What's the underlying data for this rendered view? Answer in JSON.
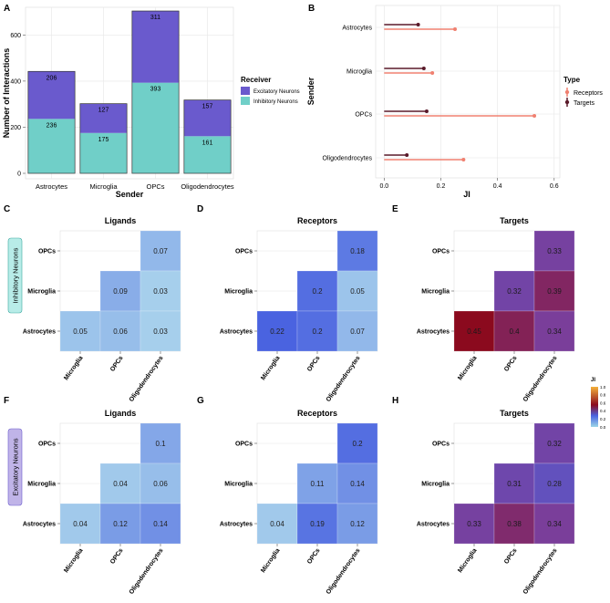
{
  "panel_letters": [
    "A",
    "B",
    "C",
    "D",
    "E",
    "F",
    "G",
    "H"
  ],
  "colors": {
    "excitatory": "#6a5acd",
    "inhibitory": "#70cfc8",
    "receptors": "#f08070",
    "targets": "#5a1a2a",
    "grid": "#e6e6e6",
    "inhibitory_tag_bg": "#b8ece8",
    "excitatory_tag_bg": "#c0b4e8"
  },
  "row_labels": {
    "inhibitory": "Inhibitory Neurons",
    "excitatory": "Excitatory Neurons"
  },
  "chart_data": [
    {
      "id": "A",
      "type": "bar",
      "stacked": true,
      "title": "",
      "xlabel": "Sender",
      "ylabel": "Number of Interactions",
      "categories": [
        "Astrocytes",
        "Microglia",
        "OPCs",
        "Oligodendrocytes"
      ],
      "series": [
        {
          "name": "Inhibitory Neurons",
          "values": [
            236,
            175,
            393,
            161
          ]
        },
        {
          "name": "Excitatory Neurons",
          "values": [
            206,
            127,
            311,
            157
          ]
        }
      ],
      "ylim": [
        0,
        720
      ],
      "yticks": [
        0,
        200,
        400,
        600
      ],
      "legend_title": "Receiver",
      "legend_entries": [
        "Excitatory Neurons",
        "Inhibitory Neurons"
      ]
    },
    {
      "id": "B",
      "type": "lollipop",
      "xlabel": "JI",
      "ylabel": "Sender",
      "categories": [
        "Astrocytes",
        "Microglia",
        "OPCs",
        "Oligodendrocytes"
      ],
      "series": [
        {
          "name": "Targets",
          "values": [
            0.12,
            0.14,
            0.15,
            0.08
          ]
        },
        {
          "name": "Receptors",
          "values": [
            0.25,
            0.17,
            0.53,
            0.28
          ]
        }
      ],
      "xlim": [
        -0.03,
        0.62
      ],
      "xticks": [
        "0.0",
        "0.2",
        "0.4",
        "0.6"
      ],
      "legend_title": "Type",
      "legend_entries": [
        "Receptors",
        "Targets"
      ]
    },
    {
      "id": "C",
      "type": "heatmap",
      "title": "Ligands",
      "x_labels": [
        "Microglia",
        "OPCs",
        "Oligodendrocytes"
      ],
      "y_labels": [
        "OPCs",
        "Microglia",
        "Astrocytes"
      ],
      "cells": [
        {
          "x": 2,
          "y": 0,
          "value": 0.07,
          "label": "0.07"
        },
        {
          "x": 1,
          "y": 1,
          "value": 0.09,
          "label": "0.09"
        },
        {
          "x": 2,
          "y": 1,
          "value": 0.03,
          "label": "0.03"
        },
        {
          "x": 0,
          "y": 2,
          "value": 0.05,
          "label": "0.05"
        },
        {
          "x": 1,
          "y": 2,
          "value": 0.06,
          "label": "0.06"
        },
        {
          "x": 2,
          "y": 2,
          "value": 0.03,
          "label": "0.03"
        }
      ]
    },
    {
      "id": "D",
      "type": "heatmap",
      "title": "Receptors",
      "x_labels": [
        "Microglia",
        "OPCs",
        "Oligodendrocytes"
      ],
      "y_labels": [
        "OPCs",
        "Microglia",
        "Astrocytes"
      ],
      "cells": [
        {
          "x": 2,
          "y": 0,
          "value": 0.18,
          "label": "0.18"
        },
        {
          "x": 1,
          "y": 1,
          "value": 0.2,
          "label": "0.2"
        },
        {
          "x": 2,
          "y": 1,
          "value": 0.05,
          "label": "0.05"
        },
        {
          "x": 0,
          "y": 2,
          "value": 0.22,
          "label": "0.22"
        },
        {
          "x": 1,
          "y": 2,
          "value": 0.2,
          "label": "0.2"
        },
        {
          "x": 2,
          "y": 2,
          "value": 0.07,
          "label": "0.07"
        }
      ]
    },
    {
      "id": "E",
      "type": "heatmap",
      "title": "Targets",
      "x_labels": [
        "Microglia",
        "OPCs",
        "Oligodendrocytes"
      ],
      "y_labels": [
        "OPCs",
        "Microglia",
        "Astrocytes"
      ],
      "cells": [
        {
          "x": 2,
          "y": 0,
          "value": 0.33,
          "label": "0.33"
        },
        {
          "x": 1,
          "y": 1,
          "value": 0.32,
          "label": "0.32"
        },
        {
          "x": 2,
          "y": 1,
          "value": 0.39,
          "label": "0.39"
        },
        {
          "x": 0,
          "y": 2,
          "value": 0.45,
          "label": "0.45"
        },
        {
          "x": 1,
          "y": 2,
          "value": 0.4,
          "label": "0.4"
        },
        {
          "x": 2,
          "y": 2,
          "value": 0.34,
          "label": "0.34"
        }
      ]
    },
    {
      "id": "F",
      "type": "heatmap",
      "title": "Ligands",
      "x_labels": [
        "Microglia",
        "OPCs",
        "Oligodendrocytes"
      ],
      "y_labels": [
        "OPCs",
        "Microglia",
        "Astrocytes"
      ],
      "cells": [
        {
          "x": 2,
          "y": 0,
          "value": 0.1,
          "label": "0.1"
        },
        {
          "x": 1,
          "y": 1,
          "value": 0.04,
          "label": "0.04"
        },
        {
          "x": 2,
          "y": 1,
          "value": 0.06,
          "label": "0.06"
        },
        {
          "x": 0,
          "y": 2,
          "value": 0.04,
          "label": "0.04"
        },
        {
          "x": 1,
          "y": 2,
          "value": 0.12,
          "label": "0.12"
        },
        {
          "x": 2,
          "y": 2,
          "value": 0.14,
          "label": "0.14"
        }
      ]
    },
    {
      "id": "G",
      "type": "heatmap",
      "title": "Receptors",
      "x_labels": [
        "Microglia",
        "OPCs",
        "Oligodendrocytes"
      ],
      "y_labels": [
        "OPCs",
        "Microglia",
        "Astrocytes"
      ],
      "cells": [
        {
          "x": 2,
          "y": 0,
          "value": 0.2,
          "label": "0.2"
        },
        {
          "x": 1,
          "y": 1,
          "value": 0.11,
          "label": "0.11"
        },
        {
          "x": 2,
          "y": 1,
          "value": 0.14,
          "label": "0.14"
        },
        {
          "x": 0,
          "y": 2,
          "value": 0.04,
          "label": "0.04"
        },
        {
          "x": 1,
          "y": 2,
          "value": 0.19,
          "label": "0.19"
        },
        {
          "x": 2,
          "y": 2,
          "value": 0.12,
          "label": "0.12"
        }
      ]
    },
    {
      "id": "H",
      "type": "heatmap",
      "title": "Targets",
      "x_labels": [
        "Microglia",
        "OPCs",
        "Oligodendrocytes"
      ],
      "y_labels": [
        "OPCs",
        "Microglia",
        "Astrocytes"
      ],
      "cells": [
        {
          "x": 2,
          "y": 0,
          "value": 0.32,
          "label": "0.32"
        },
        {
          "x": 1,
          "y": 1,
          "value": 0.31,
          "label": "0.31"
        },
        {
          "x": 2,
          "y": 1,
          "value": 0.28,
          "label": "0.28"
        },
        {
          "x": 0,
          "y": 2,
          "value": 0.33,
          "label": "0.33"
        },
        {
          "x": 1,
          "y": 2,
          "value": 0.38,
          "label": "0.38"
        },
        {
          "x": 2,
          "y": 2,
          "value": 0.34,
          "label": "0.34"
        }
      ]
    }
  ],
  "colorbar": {
    "title": "JI",
    "range": [
      0,
      1
    ],
    "ticks": [
      "0.0",
      "0.2",
      "0.4",
      "0.6",
      "0.8",
      "1.0"
    ],
    "stops": [
      "#9bd6e8",
      "#4a63e0",
      "#8b0a1e",
      "#f4b03a"
    ]
  }
}
